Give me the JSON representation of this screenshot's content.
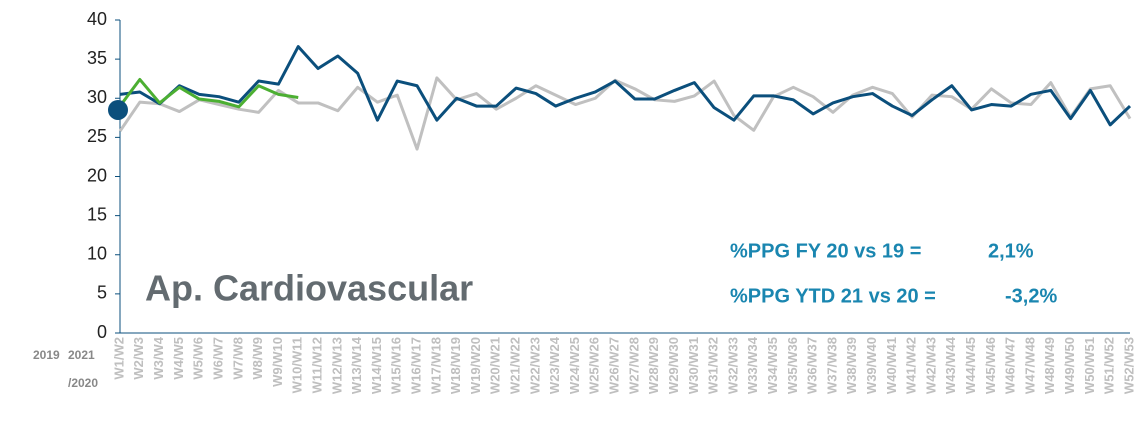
{
  "chart_data": {
    "type": "line",
    "categories": [
      "W1/W2",
      "W2/W3",
      "W3/W4",
      "W4/W5",
      "W5/W6",
      "W6/W7",
      "W7/W8",
      "W8/W9",
      "W9/W10",
      "W10/W11",
      "W11/W12",
      "W12/W13",
      "W13/W14",
      "W14/W15",
      "W15/W16",
      "W16/W17",
      "W17/W18",
      "W18/W19",
      "W19/W20",
      "W20/W21",
      "W21/W22",
      "W22/W23",
      "W23/W24",
      "W24/W25",
      "W25/W26",
      "W26/W27",
      "W27/W28",
      "W28/W29",
      "W29/W30",
      "W30/W31",
      "W31/W32",
      "W32/W33",
      "W33/W34",
      "W34/W35",
      "W35/W36",
      "W36/W37",
      "W37/W38",
      "W38/W39",
      "W39/W40",
      "W40/W41",
      "W41/W42",
      "W42/W43",
      "W43/W44",
      "W44/W45",
      "W45/W46",
      "W46/W47",
      "W47/W48",
      "W48/W49",
      "W49/W50",
      "W50/W51",
      "W51/W52",
      "W52/W53"
    ],
    "series": [
      {
        "name": "2019",
        "color": "#c0c0c0",
        "values": [
          25.8,
          29.5,
          29.3,
          28.3,
          29.8,
          29.2,
          28.6,
          28.2,
          31.0,
          29.4,
          29.4,
          28.4,
          31.4,
          29.5,
          30.4,
          23.5,
          32.6,
          29.8,
          30.6,
          28.6,
          30.0,
          31.6,
          30.4,
          29.2,
          30.0,
          32.3,
          31.2,
          29.8,
          29.6,
          30.3,
          32.2,
          27.8,
          25.9,
          30.2,
          31.4,
          30.2,
          28.2,
          30.4,
          31.4,
          30.6,
          27.6,
          30.4,
          30.2,
          28.6,
          31.2,
          29.4,
          29.2,
          32.0,
          27.6,
          31.2,
          31.6,
          27.4
        ]
      },
      {
        "name": "/2020",
        "color": "#0b4f7c",
        "values": [
          30.5,
          30.8,
          29.3,
          31.6,
          30.5,
          30.2,
          29.5,
          32.2,
          31.8,
          36.6,
          33.8,
          35.4,
          33.2,
          27.2,
          32.2,
          31.6,
          27.2,
          30.0,
          29.0,
          29.0,
          31.3,
          30.6,
          29.0,
          30.0,
          30.8,
          32.2,
          29.9,
          29.9,
          31.0,
          32.0,
          28.8,
          27.2,
          30.3,
          30.3,
          29.8,
          28.0,
          29.4,
          30.2,
          30.6,
          29.0,
          27.8,
          29.8,
          31.6,
          28.5,
          29.2,
          29.0,
          30.5,
          31.0,
          27.4,
          31.0,
          26.6,
          29.0
        ]
      },
      {
        "name": "2021",
        "color": "#4caf32",
        "values": [
          29.0,
          32.4,
          29.4,
          31.4,
          29.9,
          29.6,
          28.9,
          31.6,
          30.5,
          30.1,
          null,
          null,
          null,
          null,
          null,
          null,
          null,
          null,
          null,
          null,
          null,
          null,
          null,
          null,
          null,
          null,
          null,
          null,
          null,
          null,
          null,
          null,
          null,
          null,
          null,
          null,
          null,
          null,
          null,
          null,
          null,
          null,
          null,
          null,
          null,
          null,
          null,
          null,
          null,
          null,
          null,
          null
        ]
      }
    ],
    "marker": {
      "value": 28.5,
      "color": "#0b4f7c"
    },
    "ylim": [
      0,
      40
    ],
    "yticks": [
      0,
      5,
      10,
      15,
      20,
      25,
      30,
      35,
      40
    ],
    "axis_color": "#0b4f7c",
    "annotations": [
      "Ap. Cardiovascular",
      "%PPG FY 20 vs 19 =",
      "2,1%",
      "%PPG YTD 21 vs 20 =",
      "-3,2%"
    ]
  }
}
